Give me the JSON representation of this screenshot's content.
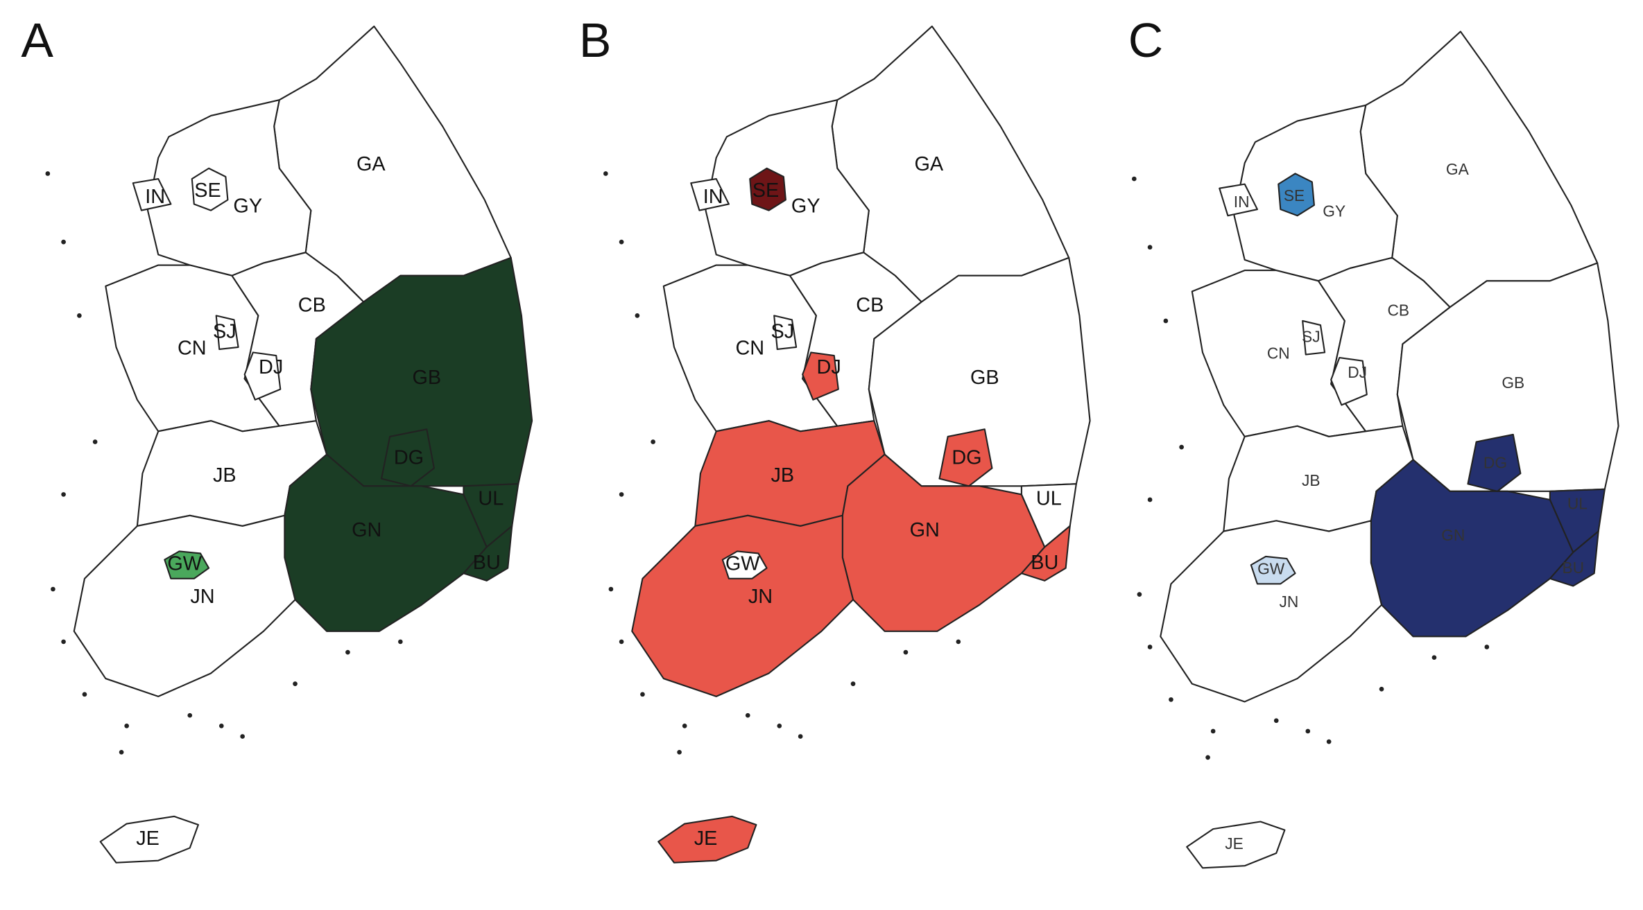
{
  "panels": [
    {
      "label": "A",
      "regions": [
        {
          "name": "GA",
          "fill": "#ffffff"
        },
        {
          "name": "GY",
          "fill": "#ffffff"
        },
        {
          "name": "IN",
          "fill": "#ffffff"
        },
        {
          "name": "SE",
          "fill": "#ffffff"
        },
        {
          "name": "CN",
          "fill": "#ffffff"
        },
        {
          "name": "SJ",
          "fill": "#ffffff"
        },
        {
          "name": "DJ",
          "fill": "#ffffff"
        },
        {
          "name": "CB",
          "fill": "#ffffff"
        },
        {
          "name": "GB",
          "fill": "#1b3d25"
        },
        {
          "name": "DG",
          "fill": "#1b3d25"
        },
        {
          "name": "JB",
          "fill": "#ffffff"
        },
        {
          "name": "GN",
          "fill": "#1b3d25"
        },
        {
          "name": "UL",
          "fill": "#1b3d25"
        },
        {
          "name": "BU",
          "fill": "#1b3d25"
        },
        {
          "name": "JN",
          "fill": "#ffffff"
        },
        {
          "name": "GW",
          "fill": "#4aa85c"
        },
        {
          "name": "JE",
          "fill": "#ffffff"
        }
      ]
    },
    {
      "label": "B",
      "regions": [
        {
          "name": "GA",
          "fill": "#ffffff"
        },
        {
          "name": "GY",
          "fill": "#ffffff"
        },
        {
          "name": "IN",
          "fill": "#ffffff"
        },
        {
          "name": "SE",
          "fill": "#6e1517"
        },
        {
          "name": "CN",
          "fill": "#ffffff"
        },
        {
          "name": "SJ",
          "fill": "#ffffff"
        },
        {
          "name": "DJ",
          "fill": "#e8564a"
        },
        {
          "name": "CB",
          "fill": "#ffffff"
        },
        {
          "name": "GB",
          "fill": "#ffffff"
        },
        {
          "name": "DG",
          "fill": "#e8564a"
        },
        {
          "name": "JB",
          "fill": "#e8564a"
        },
        {
          "name": "GN",
          "fill": "#e8564a"
        },
        {
          "name": "UL",
          "fill": "#ffffff"
        },
        {
          "name": "BU",
          "fill": "#e8564a"
        },
        {
          "name": "JN",
          "fill": "#e8564a"
        },
        {
          "name": "GW",
          "fill": "#ffffff"
        },
        {
          "name": "JE",
          "fill": "#e8564a"
        }
      ]
    },
    {
      "label": "C",
      "regions": [
        {
          "name": "GA",
          "fill": "#ffffff"
        },
        {
          "name": "GY",
          "fill": "#ffffff"
        },
        {
          "name": "IN",
          "fill": "#ffffff"
        },
        {
          "name": "SE",
          "fill": "#3b86c2"
        },
        {
          "name": "CN",
          "fill": "#ffffff"
        },
        {
          "name": "SJ",
          "fill": "#ffffff"
        },
        {
          "name": "DJ",
          "fill": "#ffffff"
        },
        {
          "name": "CB",
          "fill": "#ffffff"
        },
        {
          "name": "GB",
          "fill": "#ffffff"
        },
        {
          "name": "DG",
          "fill": "#24306e"
        },
        {
          "name": "JB",
          "fill": "#ffffff"
        },
        {
          "name": "GN",
          "fill": "#24306e"
        },
        {
          "name": "UL",
          "fill": "#24306e"
        },
        {
          "name": "BU",
          "fill": "#24306e"
        },
        {
          "name": "JN",
          "fill": "#ffffff"
        },
        {
          "name": "GW",
          "fill": "#c9dcef"
        },
        {
          "name": "JE",
          "fill": "#ffffff"
        }
      ]
    }
  ]
}
